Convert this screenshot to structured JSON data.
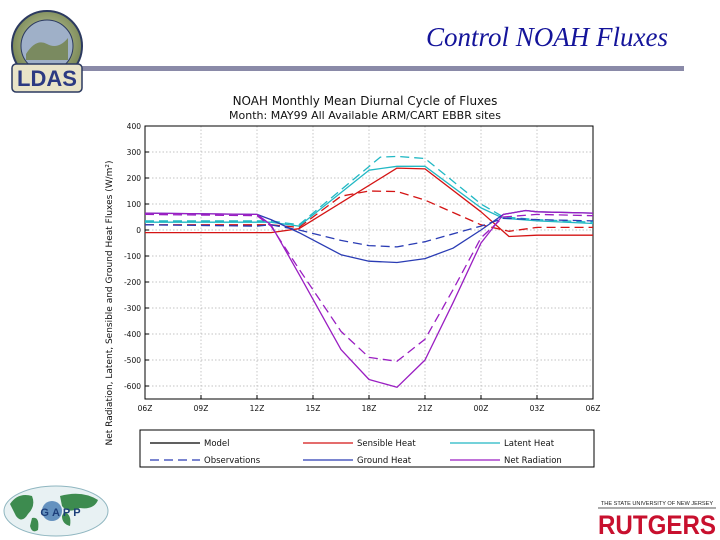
{
  "slide": {
    "title": "Control NOAH Fluxes",
    "logos": {
      "ldas_text": "LDAS",
      "ldas_ring_text": "NASA GSFC · NOAA NCEP · PRINCETON · RUTGERS",
      "gapp_text": "GAPP",
      "rutgers_top": "THE STATE UNIVERSITY OF NEW JERSEY",
      "rutgers_name": "RUTGERS"
    }
  },
  "chart_data": {
    "type": "line",
    "title": "NOAH Monthly Mean Diurnal Cycle of Fluxes",
    "subtitle": "Month: MAY99 All Available ARM/CART EBBR sites",
    "ylabel": "Net Radiation, Latent, Sensible and Ground Heat Fluxes (W/m²)",
    "xlabel": "",
    "categories": [
      "06Z",
      "09Z",
      "12Z",
      "15Z",
      "18Z",
      "21Z",
      "00Z",
      "03Z",
      "06Z"
    ],
    "ylim": [
      -650,
      400
    ],
    "yticks": [
      400,
      300,
      200,
      100,
      0,
      -100,
      -200,
      -300,
      -400,
      -500,
      -600
    ],
    "ytick_labels": [
      "400",
      "300",
      "200",
      "100",
      "0",
      "-100",
      "-200",
      "-300",
      "-400",
      "-500",
      "-600"
    ],
    "grid": true,
    "legend": {
      "placement": "bottom",
      "entries": [
        {
          "label": "Model",
          "color": "#000000",
          "dash": "solid"
        },
        {
          "label": "Sensible Heat",
          "color": "#d41414",
          "dash": "solid"
        },
        {
          "label": "Latent Heat",
          "color": "#22b8c4",
          "dash": "solid"
        },
        {
          "label": "Observations",
          "color": "#2a3cb4",
          "dash": "dashed"
        },
        {
          "label": "Ground Heat",
          "color": "#2a3cb4",
          "dash": "solid"
        },
        {
          "label": "Net Radiation",
          "color": "#9a1ec2",
          "dash": "solid"
        }
      ]
    },
    "series": [
      {
        "name": "Sensible Heat",
        "role": "Model",
        "color": "#d41414",
        "dash": "solid",
        "x": [
          0,
          2.25,
          2.75,
          4.5,
          5.0,
          6.0,
          6.5,
          7.0,
          8.0
        ],
        "y": [
          -10,
          -10,
          5,
          238,
          235,
          70,
          -25,
          -20,
          -20
        ]
      },
      {
        "name": "Sensible Heat",
        "role": "Observations",
        "color": "#d41414",
        "dash": "dashed",
        "x": [
          0,
          2.25,
          2.75,
          3.5,
          4.0,
          4.5,
          5.0,
          6.0,
          6.5,
          7.0,
          8.0
        ],
        "y": [
          20,
          20,
          10,
          130,
          150,
          148,
          115,
          20,
          -5,
          10,
          10
        ]
      },
      {
        "name": "Latent Heat",
        "role": "Model",
        "color": "#22b8c4",
        "dash": "solid",
        "x": [
          0,
          2.25,
          2.75,
          4.0,
          4.5,
          5.0,
          6.0,
          6.4,
          7.0,
          8.0
        ],
        "y": [
          30,
          30,
          15,
          230,
          245,
          245,
          85,
          45,
          35,
          25
        ]
      },
      {
        "name": "Latent Heat",
        "role": "Observations",
        "color": "#22b8c4",
        "dash": "dashed",
        "x": [
          0,
          2.25,
          2.75,
          4.2,
          4.5,
          5.0,
          6.0,
          6.4,
          7.0,
          8.0
        ],
        "y": [
          35,
          35,
          20,
          280,
          283,
          275,
          100,
          50,
          40,
          30
        ]
      },
      {
        "name": "Ground Heat",
        "role": "Model",
        "color": "#2a3cb4",
        "dash": "solid",
        "x": [
          0,
          2.0,
          2.25,
          2.75,
          3.5,
          4.0,
          4.5,
          5.0,
          5.5,
          6.0,
          6.4,
          6.8,
          7.0,
          8.0
        ],
        "y": [
          65,
          60,
          40,
          -10,
          -95,
          -120,
          -125,
          -110,
          -70,
          0,
          60,
          75,
          70,
          65
        ]
      },
      {
        "name": "Ground Heat",
        "role": "Observations",
        "color": "#2a3cb4",
        "dash": "dashed",
        "x": [
          0,
          2.0,
          2.25,
          2.75,
          3.5,
          4.0,
          4.5,
          5.0,
          6.0,
          6.4,
          7.0,
          8.0
        ],
        "y": [
          20,
          15,
          20,
          0,
          -40,
          -60,
          -65,
          -45,
          15,
          45,
          40,
          35
        ]
      },
      {
        "name": "Net Radiation",
        "role": "Model",
        "color": "#9a1ec2",
        "dash": "solid",
        "x": [
          0,
          2.0,
          2.25,
          2.75,
          3.5,
          4.0,
          4.5,
          5.0,
          5.5,
          6.0,
          6.4,
          6.8,
          7.0,
          8.0
        ],
        "y": [
          65,
          60,
          20,
          -170,
          -460,
          -575,
          -605,
          -500,
          -280,
          -50,
          60,
          75,
          70,
          65
        ]
      },
      {
        "name": "Net Radiation",
        "role": "Observations",
        "color": "#9a1ec2",
        "dash": "dashed",
        "x": [
          0,
          2.0,
          2.25,
          2.75,
          3.5,
          4.0,
          4.5,
          5.0,
          5.5,
          6.0,
          6.4,
          7.0,
          8.0
        ],
        "y": [
          60,
          55,
          15,
          -150,
          -390,
          -490,
          -505,
          -420,
          -230,
          -30,
          50,
          60,
          55
        ]
      }
    ]
  }
}
